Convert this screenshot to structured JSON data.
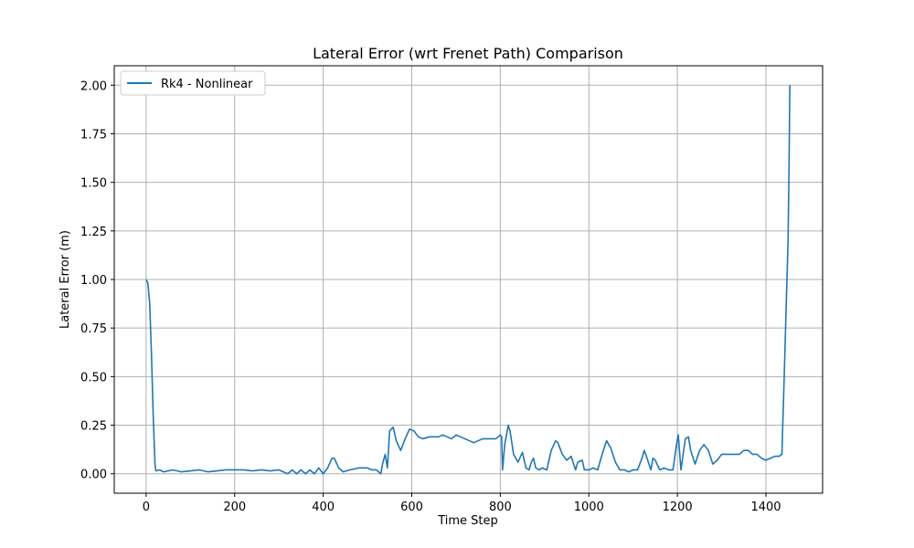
{
  "chart_data": {
    "type": "line",
    "title": "Lateral Error (wrt Frenet Path) Comparison",
    "xlabel": "Time Step",
    "ylabel": "Lateral Error (m)",
    "xlim": [
      -72,
      1528
    ],
    "ylim": [
      -0.1,
      2.1
    ],
    "xticks": [
      0,
      200,
      400,
      600,
      800,
      1000,
      1200,
      1400
    ],
    "xtick_labels": [
      "0",
      "200",
      "400",
      "600",
      "800",
      "1000",
      "1200",
      "1400"
    ],
    "yticks": [
      0.0,
      0.25,
      0.5,
      0.75,
      1.0,
      1.25,
      1.5,
      1.75,
      2.0
    ],
    "ytick_labels": [
      "0.00",
      "0.25",
      "0.50",
      "0.75",
      "1.00",
      "1.25",
      "1.50",
      "1.75",
      "2.00"
    ],
    "grid": true,
    "legend_position": "top-left",
    "series": [
      {
        "name": "Rk4 - Nonlinear",
        "color": "#1f77b4",
        "x": [
          0,
          4,
          8,
          12,
          16,
          20,
          22,
          30,
          40,
          60,
          80,
          100,
          120,
          140,
          160,
          180,
          200,
          220,
          240,
          260,
          280,
          300,
          320,
          330,
          340,
          350,
          360,
          370,
          380,
          390,
          400,
          410,
          420,
          425,
          435,
          445,
          460,
          480,
          500,
          510,
          520,
          530,
          535,
          540,
          545,
          550,
          558,
          565,
          575,
          585,
          595,
          605,
          615,
          625,
          640,
          660,
          670,
          680,
          690,
          700,
          720,
          740,
          760,
          780,
          790,
          800,
          803,
          805,
          810,
          818,
          822,
          830,
          840,
          850,
          858,
          865,
          870,
          875,
          880,
          888,
          895,
          905,
          915,
          925,
          930,
          940,
          950,
          960,
          970,
          975,
          985,
          990,
          1000,
          1010,
          1020,
          1030,
          1040,
          1050,
          1060,
          1070,
          1080,
          1090,
          1100,
          1110,
          1120,
          1125,
          1130,
          1140,
          1145,
          1150,
          1160,
          1170,
          1180,
          1190,
          1198,
          1202,
          1208,
          1218,
          1225,
          1230,
          1240,
          1250,
          1260,
          1270,
          1280,
          1290,
          1300,
          1320,
          1340,
          1350,
          1360,
          1370,
          1380,
          1390,
          1400,
          1410,
          1420,
          1430,
          1436,
          1440,
          1445,
          1450,
          1452,
          1454
        ],
        "y": [
          1.0,
          0.98,
          0.88,
          0.62,
          0.3,
          0.05,
          0.015,
          0.02,
          0.01,
          0.02,
          0.01,
          0.015,
          0.02,
          0.01,
          0.015,
          0.02,
          0.02,
          0.02,
          0.015,
          0.02,
          0.015,
          0.02,
          0.0,
          0.02,
          0.0,
          0.02,
          0.0,
          0.02,
          0.0,
          0.03,
          0.0,
          0.03,
          0.08,
          0.08,
          0.03,
          0.01,
          0.02,
          0.03,
          0.03,
          0.02,
          0.02,
          0.0,
          0.06,
          0.1,
          0.03,
          0.22,
          0.24,
          0.17,
          0.12,
          0.18,
          0.23,
          0.22,
          0.19,
          0.18,
          0.19,
          0.19,
          0.2,
          0.19,
          0.18,
          0.2,
          0.18,
          0.16,
          0.18,
          0.18,
          0.18,
          0.2,
          0.19,
          0.02,
          0.15,
          0.25,
          0.22,
          0.1,
          0.06,
          0.11,
          0.03,
          0.02,
          0.06,
          0.08,
          0.03,
          0.02,
          0.03,
          0.02,
          0.12,
          0.17,
          0.16,
          0.1,
          0.07,
          0.09,
          0.02,
          0.06,
          0.07,
          0.02,
          0.02,
          0.03,
          0.02,
          0.1,
          0.17,
          0.13,
          0.06,
          0.02,
          0.02,
          0.01,
          0.02,
          0.02,
          0.08,
          0.12,
          0.09,
          0.02,
          0.08,
          0.07,
          0.02,
          0.03,
          0.02,
          0.02,
          0.15,
          0.2,
          0.02,
          0.18,
          0.19,
          0.12,
          0.05,
          0.12,
          0.15,
          0.12,
          0.05,
          0.07,
          0.1,
          0.1,
          0.1,
          0.12,
          0.12,
          0.1,
          0.1,
          0.08,
          0.07,
          0.08,
          0.09,
          0.09,
          0.1,
          0.4,
          0.8,
          1.2,
          1.55,
          2.0
        ]
      }
    ]
  }
}
